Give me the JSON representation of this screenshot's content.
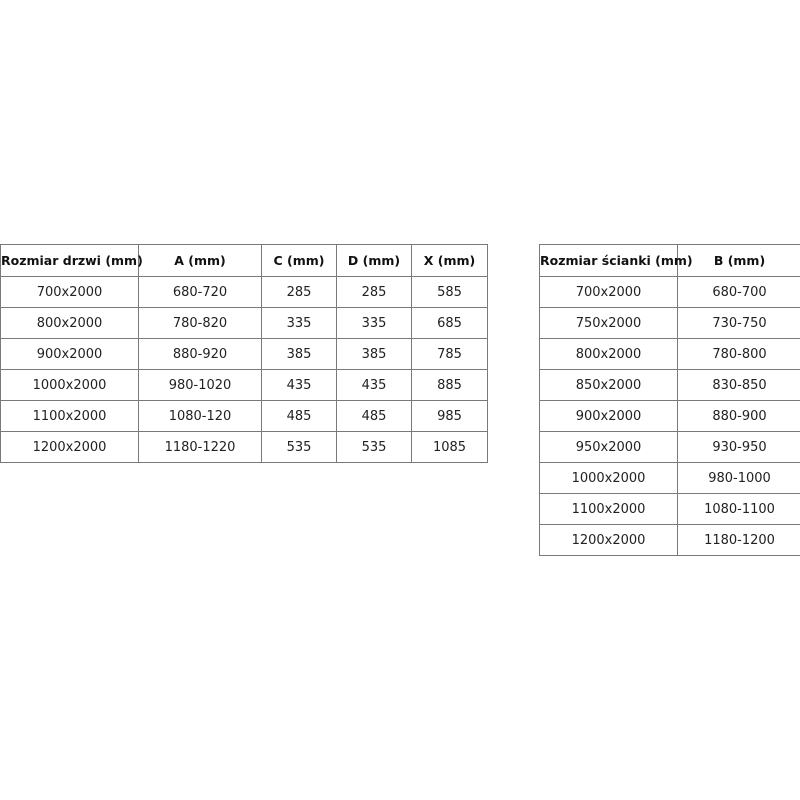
{
  "doors_table": {
    "headers": [
      "Rozmiar drzwi (mm)",
      "A (mm)",
      "C (mm)",
      "D (mm)",
      "X (mm)"
    ],
    "rows": [
      [
        "700x2000",
        "680-720",
        "285",
        "285",
        "585"
      ],
      [
        "800x2000",
        "780-820",
        "335",
        "335",
        "685"
      ],
      [
        "900x2000",
        "880-920",
        "385",
        "385",
        "785"
      ],
      [
        "1000x2000",
        "980-1020",
        "435",
        "435",
        "885"
      ],
      [
        "1100x2000",
        "1080-120",
        "485",
        "485",
        "985"
      ],
      [
        "1200x2000",
        "1180-1220",
        "535",
        "535",
        "1085"
      ]
    ]
  },
  "wall_table": {
    "headers": [
      "Rozmiar ścianki (mm)",
      "B (mm)"
    ],
    "rows": [
      [
        "700x2000",
        "680-700"
      ],
      [
        "750x2000",
        "730-750"
      ],
      [
        "800x2000",
        "780-800"
      ],
      [
        "850x2000",
        "830-850"
      ],
      [
        "900x2000",
        "880-900"
      ],
      [
        "950x2000",
        "930-950"
      ],
      [
        "1000x2000",
        "980-1000"
      ],
      [
        "1100x2000",
        "1080-1100"
      ],
      [
        "1200x2000",
        "1180-1200"
      ]
    ]
  }
}
